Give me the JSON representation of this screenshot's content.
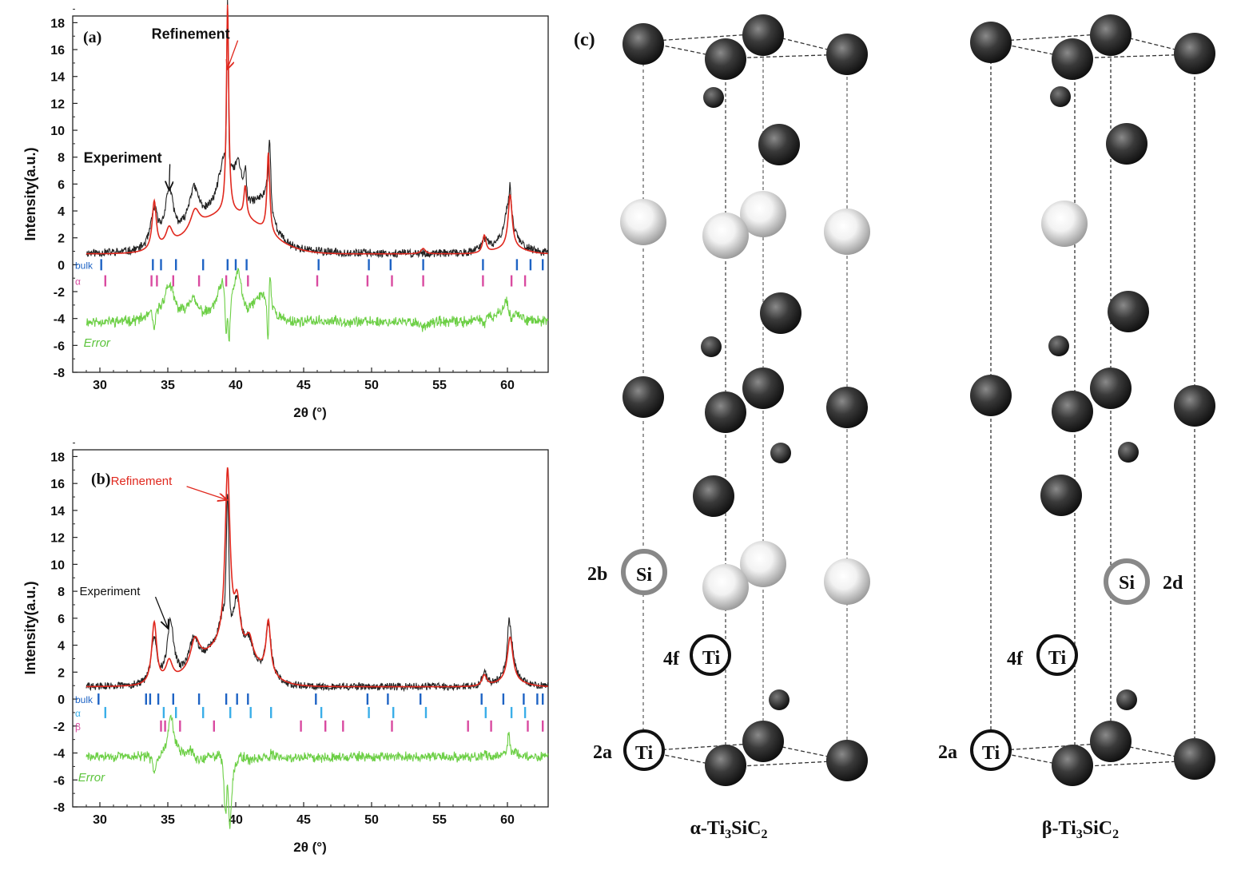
{
  "chart_data": [
    {
      "panel": "(a)",
      "type": "line",
      "xlabel": "2θ (°)",
      "ylabel": "Intensity(a.u.)",
      "xlim": [
        28,
        63
      ],
      "ylim": [
        -8,
        18.5
      ],
      "xticks": [
        30,
        35,
        40,
        45,
        50,
        55,
        60
      ],
      "yticks": [
        -8,
        -6,
        -4,
        -2,
        0,
        2,
        4,
        6,
        8,
        10,
        12,
        14,
        16,
        18
      ],
      "annotations": [
        {
          "text": "Refinement",
          "color": "#111111",
          "serif": true,
          "at": [
            33.8,
            16.8
          ],
          "arrow_to": [
            39.4,
            14.6
          ]
        },
        {
          "text": "Experiment",
          "color": "#111111",
          "serif": true,
          "at": [
            28.8,
            7.6
          ],
          "arrow_to": [
            35.1,
            5.6
          ]
        },
        {
          "text": "Error",
          "color": "#5cc43c",
          "italic": true,
          "at": [
            28.8,
            -6.1
          ]
        }
      ],
      "series": [
        {
          "name": "Experiment",
          "color": "#222222",
          "base": 0.8,
          "peaks": [
            [
              34.0,
              2.7,
              0.3
            ],
            [
              35.1,
              3.9,
              0.4
            ],
            [
              36.9,
              3.0,
              0.5
            ],
            [
              39.2,
              4.2,
              0.6
            ],
            [
              40.2,
              3.2,
              0.4
            ],
            [
              41.8,
              2.3,
              1.0
            ],
            [
              42.4,
              2.8,
              0.3
            ],
            [
              58.3,
              0.9,
              0.3
            ],
            [
              60.1,
              3.2,
              0.4
            ]
          ],
          "sharp": [
            [
              39.4,
              12.0,
              0.08
            ],
            [
              40.7,
              2.0,
              0.1
            ],
            [
              42.5,
              3.5,
              0.1
            ],
            [
              60.2,
              1.5,
              0.1
            ]
          ],
          "humps": [
            [
              39.0,
              2.2,
              3.0
            ],
            [
              60.2,
              0.5,
              1.5
            ]
          ],
          "noise": 0.3
        },
        {
          "name": "Refinement",
          "color": "#e0281e",
          "base": 0.8,
          "peaks": [
            [
              34.0,
              3.6,
              0.18
            ],
            [
              35.1,
              1.3,
              0.3
            ],
            [
              37.0,
              1.5,
              0.4
            ],
            [
              39.4,
              15.5,
              0.1
            ],
            [
              40.7,
              2.3,
              0.12
            ],
            [
              42.4,
              6.0,
              0.12
            ],
            [
              53.8,
              0.4,
              0.2
            ],
            [
              58.3,
              1.3,
              0.15
            ],
            [
              60.2,
              4.0,
              0.18
            ]
          ],
          "sharp": [],
          "humps": [
            [
              39.5,
              3.0,
              3.5
            ],
            [
              60.2,
              0.4,
              1.5
            ]
          ],
          "noise": 0
        },
        {
          "name": "Error",
          "color": "#6ccf45",
          "diff": true,
          "offset": -4.3,
          "noise": 0.18
        }
      ],
      "reflections": [
        {
          "label": "bulk",
          "color": "#1e63c4",
          "y": 0,
          "positions": [
            30.1,
            33.9,
            34.5,
            35.6,
            37.6,
            39.4,
            40.0,
            40.8,
            46.1,
            49.8,
            51.4,
            53.8,
            58.2,
            60.7,
            61.7,
            62.6
          ]
        },
        {
          "label": "α",
          "color": "#d94aa0",
          "y": -1.2,
          "positions": [
            30.4,
            33.8,
            34.2,
            35.4,
            37.3,
            39.3,
            40.9,
            46.0,
            49.7,
            51.5,
            53.8,
            58.2,
            60.3,
            61.3
          ]
        }
      ]
    },
    {
      "panel": "(b)",
      "type": "line",
      "xlabel": "2θ (°)",
      "ylabel": "Intensity(a.u.)",
      "xlim": [
        28,
        63
      ],
      "ylim": [
        -8,
        18.5
      ],
      "xticks": [
        30,
        35,
        40,
        45,
        50,
        55,
        60
      ],
      "yticks": [
        -8,
        -6,
        -4,
        -2,
        0,
        2,
        4,
        6,
        8,
        10,
        12,
        14,
        16,
        18
      ],
      "annotations": [
        {
          "text": "Refinement",
          "color": "#e0281e",
          "at": [
            30.8,
            15.9
          ],
          "arrow_to": [
            39.3,
            14.8
          ]
        },
        {
          "text": "Experiment",
          "color": "#111111",
          "at": [
            28.5,
            7.7
          ],
          "arrow_to": [
            35.0,
            5.3
          ]
        },
        {
          "text": "Error",
          "color": "#5cc43c",
          "italic": true,
          "at": [
            28.4,
            -6.1
          ]
        }
      ],
      "series": [
        {
          "name": "Experiment",
          "color": "#222222",
          "base": 0.9,
          "peaks": [
            [
              34.0,
              3.5,
              0.25
            ],
            [
              35.2,
              4.4,
              0.3
            ],
            [
              36.9,
              2.3,
              0.45
            ],
            [
              39.2,
              3.0,
              0.5
            ],
            [
              40.1,
              3.5,
              0.3
            ],
            [
              41.0,
              1.5,
              0.4
            ],
            [
              42.4,
              4.0,
              0.25
            ],
            [
              58.3,
              0.9,
              0.2
            ],
            [
              60.2,
              3.6,
              0.3
            ]
          ],
          "sharp": [
            [
              39.4,
              8.5,
              0.12
            ],
            [
              60.1,
              1.5,
              0.1
            ]
          ],
          "humps": [
            [
              39.2,
              2.5,
              2.5
            ],
            [
              60.2,
              0.3,
              1.5
            ]
          ],
          "noise": 0.28
        },
        {
          "name": "Refinement",
          "color": "#e0281e",
          "base": 0.9,
          "peaks": [
            [
              34.0,
              4.6,
              0.22
            ],
            [
              35.1,
              1.5,
              0.3
            ],
            [
              37.0,
              2.1,
              0.4
            ],
            [
              39.4,
              13.0,
              0.22
            ],
            [
              40.1,
              3.2,
              0.25
            ],
            [
              41.0,
              1.5,
              0.3
            ],
            [
              42.4,
              4.0,
              0.2
            ],
            [
              58.3,
              0.8,
              0.2
            ],
            [
              60.2,
              3.4,
              0.25
            ]
          ],
          "sharp": [],
          "humps": [
            [
              39.3,
              2.8,
              2.8
            ],
            [
              60.2,
              0.3,
              1.5
            ]
          ],
          "noise": 0
        },
        {
          "name": "Error",
          "color": "#6ccf45",
          "diff": true,
          "offset": -4.3,
          "noise": 0.16
        }
      ],
      "reflections": [
        {
          "label": "bulk",
          "color": "#1e63c4",
          "y": 0,
          "positions": [
            29.9,
            33.4,
            33.7,
            34.3,
            35.4,
            37.3,
            39.3,
            40.1,
            40.9,
            45.9,
            49.7,
            51.2,
            53.6,
            58.1,
            59.7,
            61.2,
            62.2,
            62.6
          ]
        },
        {
          "label": "α",
          "color": "#3aaee8",
          "y": -1.0,
          "positions": [
            30.4,
            34.7,
            35.6,
            37.6,
            39.6,
            41.1,
            42.6,
            46.3,
            49.8,
            51.6,
            54.0,
            58.4,
            60.3,
            61.3
          ]
        },
        {
          "label": "β",
          "color": "#d94aa0",
          "y": -2.0,
          "positions": [
            34.5,
            34.8,
            35.9,
            38.4,
            44.8,
            46.6,
            47.9,
            51.5,
            57.1,
            58.8,
            61.5,
            62.6
          ]
        }
      ]
    }
  ],
  "panel_c": {
    "label": "(c)",
    "structures": [
      {
        "name": "α-Ti3SiC2",
        "title_base": "α-Ti",
        "sub1": "3",
        "mid": "SiC",
        "sub2": "2"
      },
      {
        "name": "β-Ti3SiC2",
        "title_base": "β-Ti",
        "sub1": "3",
        "mid": "SiC",
        "sub2": "2"
      }
    ],
    "site_labels": {
      "alpha": [
        {
          "site": "2b",
          "element": "Si"
        },
        {
          "site": "4f",
          "element": "Ti"
        },
        {
          "site": "2a",
          "element": "Ti"
        }
      ],
      "beta": [
        {
          "site": "2d",
          "element": "Si"
        },
        {
          "site": "4f",
          "element": "Ti"
        },
        {
          "site": "2a",
          "element": "Ti"
        }
      ]
    },
    "colors": {
      "ti": "#2f2f2f",
      "si": "#cfcfcf",
      "c": "#222222",
      "ring_si": "#888888"
    }
  }
}
